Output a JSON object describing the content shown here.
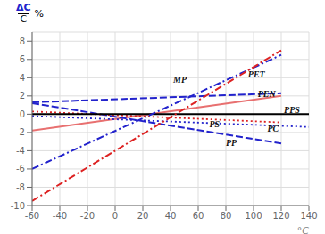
{
  "chart_data": {
    "type": "line",
    "xlabel": "°C",
    "ylabel": [
      "ΔC",
      "C",
      "%"
    ],
    "xlim": [
      -60,
      140
    ],
    "ylim": [
      -10,
      9
    ],
    "xticks": [
      -60,
      -40,
      -20,
      0,
      20,
      40,
      60,
      80,
      100,
      120,
      140
    ],
    "yticks": [
      -10,
      -8,
      -6,
      -4,
      -2,
      0,
      2,
      4,
      6,
      8
    ],
    "grid": true,
    "series": [
      {
        "x": [
          -60,
          120
        ],
        "values": [
          -1.8,
          2.0
        ],
        "color": "#e87070",
        "line_style": "solid"
      },
      {
        "name": "PP",
        "x": [
          -60,
          120
        ],
        "values": [
          1.2,
          -3.2
        ],
        "color": "#2222cc",
        "line_style": "dashed"
      },
      {
        "name": "PC",
        "x": [
          -60,
          140
        ],
        "values": [
          -0.2,
          -1.4
        ],
        "color": "#2222cc",
        "line_style": "dotted"
      },
      {
        "name": "PS",
        "x": [
          -60,
          120
        ],
        "values": [
          0.3,
          -0.9
        ],
        "color": "#dd2222",
        "line_style": "dotted"
      },
      {
        "name": "PPS",
        "x": [
          -60,
          140
        ],
        "values": [
          0.0,
          0.0
        ],
        "color": "#000000",
        "line_style": "solid"
      },
      {
        "name": "PEN",
        "x": [
          -60,
          120
        ],
        "values": [
          1.3,
          2.3
        ],
        "color": "#2222cc",
        "line_style": "dashed"
      },
      {
        "name": "PET",
        "x": [
          -60,
          120
        ],
        "values": [
          -6.0,
          6.5
        ],
        "color": "#2222cc",
        "line_style": "dashdot"
      },
      {
        "name": "MP",
        "x": [
          -60,
          120
        ],
        "values": [
          -9.5,
          7.0
        ],
        "color": "#dd2222",
        "line_style": "dashdot"
      }
    ],
    "annotations": [
      {
        "text": "MP",
        "x": 42,
        "y": 3.8
      },
      {
        "text": "PET",
        "x": 96,
        "y": 4.4
      },
      {
        "text": "PEN",
        "x": 103,
        "y": 2.2
      },
      {
        "text": "PPS",
        "x": 122,
        "y": 0.5
      },
      {
        "text": "PC",
        "x": 110,
        "y": -1.6
      },
      {
        "text": "PS",
        "x": 68,
        "y": -1.1
      },
      {
        "text": "PP",
        "x": 80,
        "y": -3.1
      }
    ]
  }
}
